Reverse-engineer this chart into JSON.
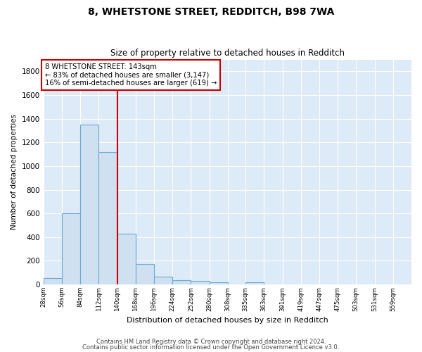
{
  "title": "8, WHETSTONE STREET, REDDITCH, B98 7WA",
  "subtitle": "Size of property relative to detached houses in Redditch",
  "xlabel": "Distribution of detached houses by size in Redditch",
  "ylabel": "Number of detached properties",
  "bar_color": "#cfe0f0",
  "bar_edge_color": "#6aaad4",
  "background_color": "#ddeaf7",
  "grid_color": "white",
  "bin_edges": [
    28,
    56,
    84,
    112,
    140,
    168,
    196,
    224,
    252,
    280,
    308,
    335,
    363,
    391,
    419,
    447,
    475,
    503,
    531,
    559,
    587
  ],
  "counts": [
    55,
    600,
    1350,
    1120,
    430,
    175,
    65,
    35,
    30,
    18,
    0,
    20,
    0,
    0,
    0,
    0,
    0,
    0,
    0,
    0
  ],
  "vline_x": 140,
  "vline_color": "#cc0000",
  "annotation_line1": "8 WHETSTONE STREET: 143sqm",
  "annotation_line2": "← 83% of detached houses are smaller (3,147)",
  "annotation_line3": "16% of semi-detached houses are larger (619) →",
  "annotation_box_edge": "#cc0000",
  "ylim": [
    0,
    1900
  ],
  "yticks": [
    0,
    200,
    400,
    600,
    800,
    1000,
    1200,
    1400,
    1600,
    1800
  ],
  "footer_line1": "Contains HM Land Registry data © Crown copyright and database right 2024.",
  "footer_line2": "Contains public sector information licensed under the Open Government Licence v3.0."
}
